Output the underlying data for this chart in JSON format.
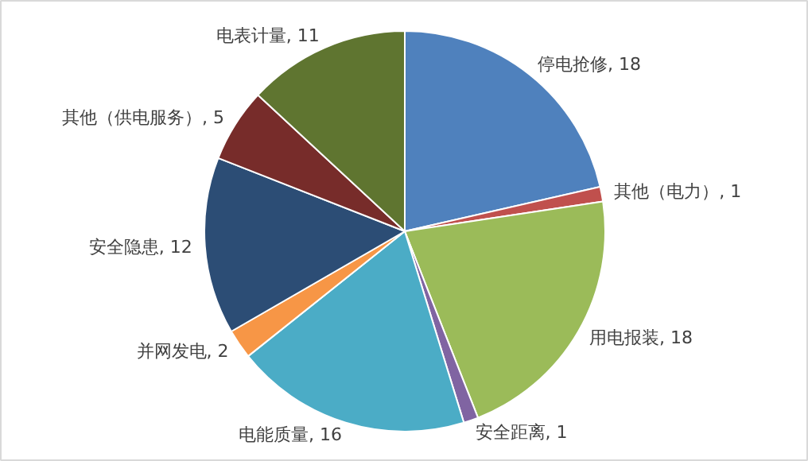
{
  "chart_data": {
    "type": "pie",
    "categories": [
      "停电抢修, 18",
      "其他（电力）, 1",
      "用电报装, 18",
      "安全距离, 1",
      "电能质量, 16",
      "并网发电, 2",
      "安全隐患, 12",
      "其他（供电服务）, 5",
      "电表计量, 11"
    ],
    "values": [
      18,
      1,
      18,
      1,
      16,
      2,
      12,
      5,
      11
    ],
    "colors": [
      "#4f81bd",
      "#c0504d",
      "#9bbb59",
      "#8064a2",
      "#4bacc6",
      "#f79646",
      "#2c4d75",
      "#772c2a",
      "#5f7530"
    ]
  }
}
